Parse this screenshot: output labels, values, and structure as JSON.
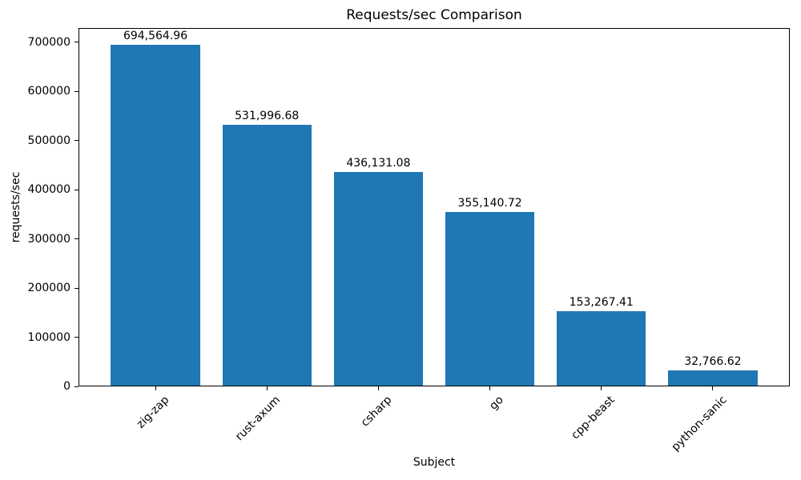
{
  "chart_data": {
    "type": "bar",
    "title": "Requests/sec Comparison",
    "xlabel": "Subject",
    "ylabel": "requests/sec",
    "categories": [
      "zig-zap",
      "rust-axum",
      "csharp",
      "go",
      "cpp-beast",
      "python-sanic"
    ],
    "values": [
      694564.96,
      531996.68,
      436131.08,
      355140.72,
      153267.41,
      32766.62
    ],
    "value_labels": [
      "694,564.96",
      "531,996.68",
      "436,131.08",
      "355,140.72",
      "153,267.41",
      "32,766.62"
    ],
    "ylim": [
      0,
      729293
    ],
    "yticks": [
      0,
      100000,
      200000,
      300000,
      400000,
      500000,
      600000,
      700000
    ],
    "ytick_labels": [
      "0",
      "100000",
      "200000",
      "300000",
      "400000",
      "500000",
      "600000",
      "700000"
    ],
    "bar_color": "#1f77b4",
    "axis_color": "#000000",
    "grid": false,
    "legend": "none",
    "x_tick_rotation_deg": 45
  }
}
